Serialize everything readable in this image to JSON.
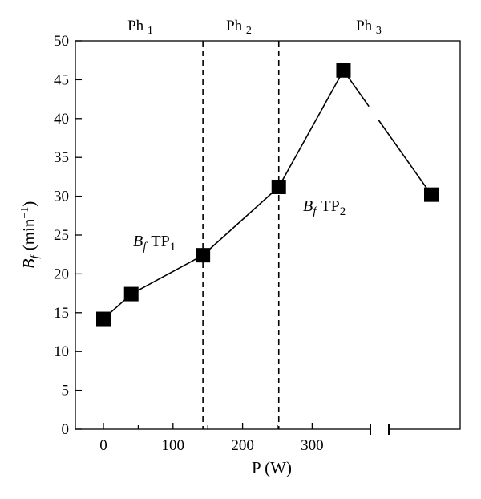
{
  "chart_data": {
    "type": "line",
    "xlabel": "P (W)",
    "ylabel": {
      "symbol": "B",
      "sub": "f",
      "unit": "(min",
      "exp": "−1",
      "close": ")"
    },
    "x_ticks": [
      "0",
      "100",
      "200",
      "300"
    ],
    "y_ticks": [
      "0",
      "5",
      "10",
      "15",
      "20",
      "25",
      "30",
      "35",
      "40",
      "45",
      "50"
    ],
    "ylim": [
      0,
      50
    ],
    "x_axis_break": true,
    "series": [
      {
        "points": [
          {
            "x": 0,
            "y": 14.2
          },
          {
            "x": 40,
            "y": 17.4
          },
          {
            "x": 143,
            "y": 22.4
          },
          {
            "x": 252,
            "y": 31.2
          },
          {
            "x": 345,
            "y": 46.2
          },
          {
            "x": "after-break",
            "y": 30.2
          }
        ],
        "marker": "square",
        "color": "#000000"
      }
    ],
    "phase_boundaries": [
      143,
      252
    ],
    "phases": [
      {
        "label": "Ph",
        "sub": "1"
      },
      {
        "label": "Ph",
        "sub": "2"
      },
      {
        "label": "Ph",
        "sub": "3"
      }
    ],
    "annotations": [
      {
        "symbol": "B",
        "sub": "f",
        "label": "TP",
        "index": "1"
      },
      {
        "symbol": "B",
        "sub": "f",
        "label": "TP",
        "index": "2"
      }
    ]
  }
}
